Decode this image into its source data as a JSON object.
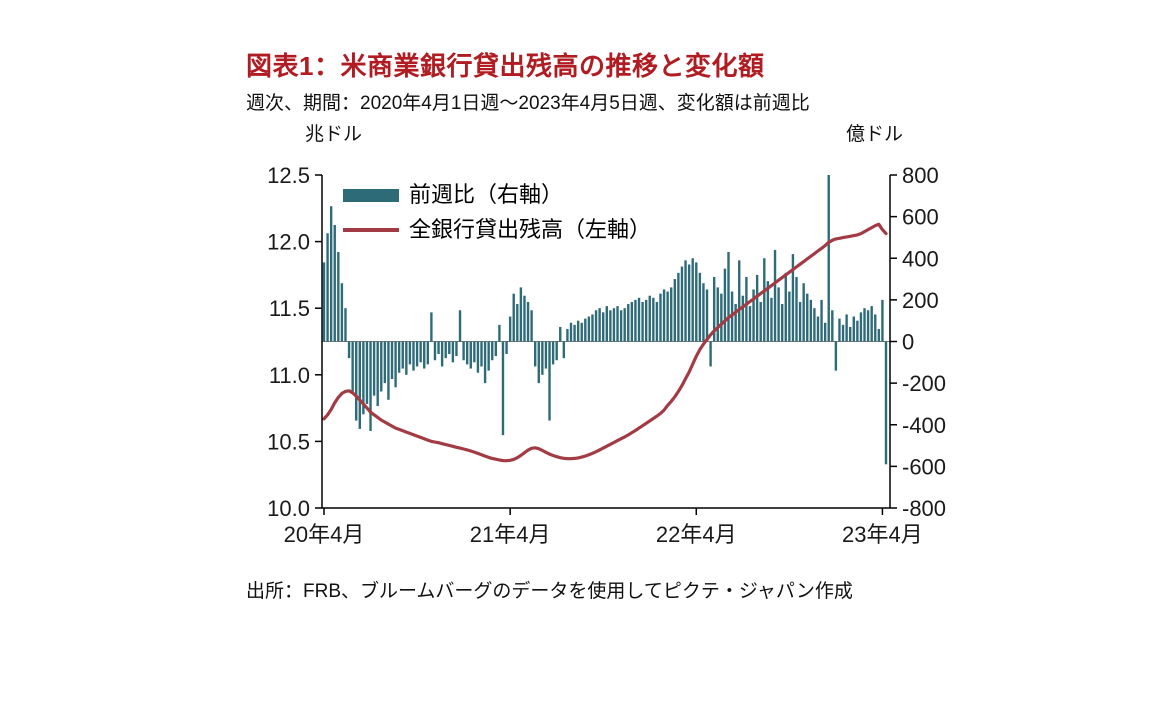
{
  "header": {
    "title": "図表1：米商業銀行貸出残高の推移と変化額",
    "subtitle": "週次、期間：2020年4月1日週～2023年4月5日週、変化額は前週比"
  },
  "footer": {
    "source": "出所：FRB、ブルームバーグのデータを使用してピクテ・ジャパン作成"
  },
  "chart_data": {
    "type": "bar+line combo (weekly)",
    "title": "図表1：米商業銀行貸出残高の推移と変化額",
    "subtitle": "週次、期間：2020年4月1日週～2023年4月5日週、変化額は前週比",
    "unit_left": "兆ドル",
    "unit_right": "億ドル",
    "x_tick_labels": [
      "20年4月",
      "21年4月",
      "22年4月",
      "23年4月"
    ],
    "x_tick_weeks": [
      0,
      52,
      104,
      156
    ],
    "y_left": {
      "min": 10.0,
      "max": 12.5,
      "ticks": [
        "12.5",
        "12.0",
        "11.5",
        "11.0",
        "10.5",
        "10.0"
      ]
    },
    "y_right": {
      "min": -800,
      "max": 800,
      "ticks": [
        "800",
        "600",
        "400",
        "200",
        "0",
        "-200",
        "-400",
        "-600",
        "-800"
      ]
    },
    "grid": "off",
    "legend_position": "top-left-inside",
    "legend": [
      {
        "label": "前週比（右軸）",
        "type": "bar",
        "axis": "right"
      },
      {
        "label": "全銀行貸出残高（左軸）",
        "type": "line",
        "axis": "left"
      }
    ],
    "colors": {
      "title": "#b01c22",
      "bars": "#2e6b78",
      "line": "#a33b44",
      "axis": "#000000",
      "tick_text": "#1a1a1a",
      "zero_line": "#777777"
    },
    "series": {
      "weekly_change_oku_usd": [
        380,
        520,
        650,
        560,
        430,
        280,
        160,
        -80,
        -250,
        -380,
        -420,
        -350,
        -300,
        -430,
        -260,
        -310,
        -240,
        -200,
        -280,
        -180,
        -220,
        -150,
        -130,
        -160,
        -110,
        -140,
        -120,
        -100,
        -130,
        -110,
        140,
        -90,
        -60,
        -120,
        -80,
        -60,
        -100,
        -70,
        150,
        -90,
        -110,
        -130,
        -100,
        -150,
        -120,
        -200,
        -140,
        -90,
        -70,
        80,
        -450,
        -60,
        120,
        230,
        180,
        260,
        220,
        190,
        150,
        -120,
        -200,
        -160,
        -130,
        -380,
        -110,
        -90,
        70,
        -80,
        60,
        90,
        80,
        100,
        90,
        110,
        120,
        130,
        150,
        160,
        140,
        170,
        150,
        160,
        170,
        150,
        160,
        180,
        190,
        200,
        210,
        190,
        200,
        220,
        210,
        190,
        230,
        250,
        240,
        260,
        300,
        330,
        360,
        390,
        370,
        400,
        380,
        330,
        280,
        250,
        -120,
        310,
        260,
        230,
        350,
        430,
        240,
        180,
        390,
        220,
        310,
        170,
        250,
        320,
        190,
        400,
        290,
        210,
        440,
        260,
        180,
        330,
        240,
        420,
        310,
        190,
        280,
        230,
        200,
        160,
        120,
        200,
        90,
        800,
        150,
        -140,
        110,
        80,
        130,
        70,
        120,
        100,
        140,
        160,
        150,
        170,
        130,
        60,
        200,
        -590
      ],
      "loans_outstanding_trillion_usd": [
        10.67,
        10.7,
        10.74,
        10.79,
        10.83,
        10.86,
        10.875,
        10.88,
        10.865,
        10.84,
        10.81,
        10.78,
        10.75,
        10.72,
        10.7,
        10.68,
        10.66,
        10.645,
        10.63,
        10.615,
        10.6,
        10.59,
        10.58,
        10.57,
        10.56,
        10.55,
        10.54,
        10.53,
        10.52,
        10.51,
        10.5,
        10.495,
        10.49,
        10.483,
        10.476,
        10.47,
        10.463,
        10.456,
        10.45,
        10.443,
        10.436,
        10.428,
        10.42,
        10.41,
        10.4,
        10.39,
        10.38,
        10.372,
        10.366,
        10.36,
        10.356,
        10.355,
        10.358,
        10.365,
        10.378,
        10.395,
        10.415,
        10.435,
        10.448,
        10.452,
        10.445,
        10.432,
        10.418,
        10.405,
        10.394,
        10.385,
        10.378,
        10.373,
        10.37,
        10.37,
        10.372,
        10.376,
        10.382,
        10.39,
        10.4,
        10.411,
        10.423,
        10.436,
        10.45,
        10.464,
        10.478,
        10.492,
        10.506,
        10.52,
        10.534,
        10.549,
        10.565,
        10.582,
        10.6,
        10.618,
        10.636,
        10.654,
        10.672,
        10.69,
        10.71,
        10.735,
        10.77,
        10.8,
        10.835,
        10.875,
        10.92,
        10.97,
        11.02,
        11.08,
        11.14,
        11.19,
        11.23,
        11.265,
        11.3,
        11.33,
        11.355,
        11.38,
        11.405,
        11.43,
        11.45,
        11.47,
        11.49,
        11.51,
        11.53,
        11.55,
        11.57,
        11.59,
        11.61,
        11.63,
        11.65,
        11.67,
        11.69,
        11.71,
        11.73,
        11.75,
        11.77,
        11.79,
        11.81,
        11.83,
        11.85,
        11.87,
        11.89,
        11.91,
        11.93,
        11.95,
        11.97,
        11.995,
        12.01,
        12.02,
        12.025,
        12.03,
        12.035,
        12.04,
        12.045,
        12.05,
        12.06,
        12.075,
        12.09,
        12.105,
        12.12,
        12.13,
        12.09,
        12.06
      ]
    }
  }
}
